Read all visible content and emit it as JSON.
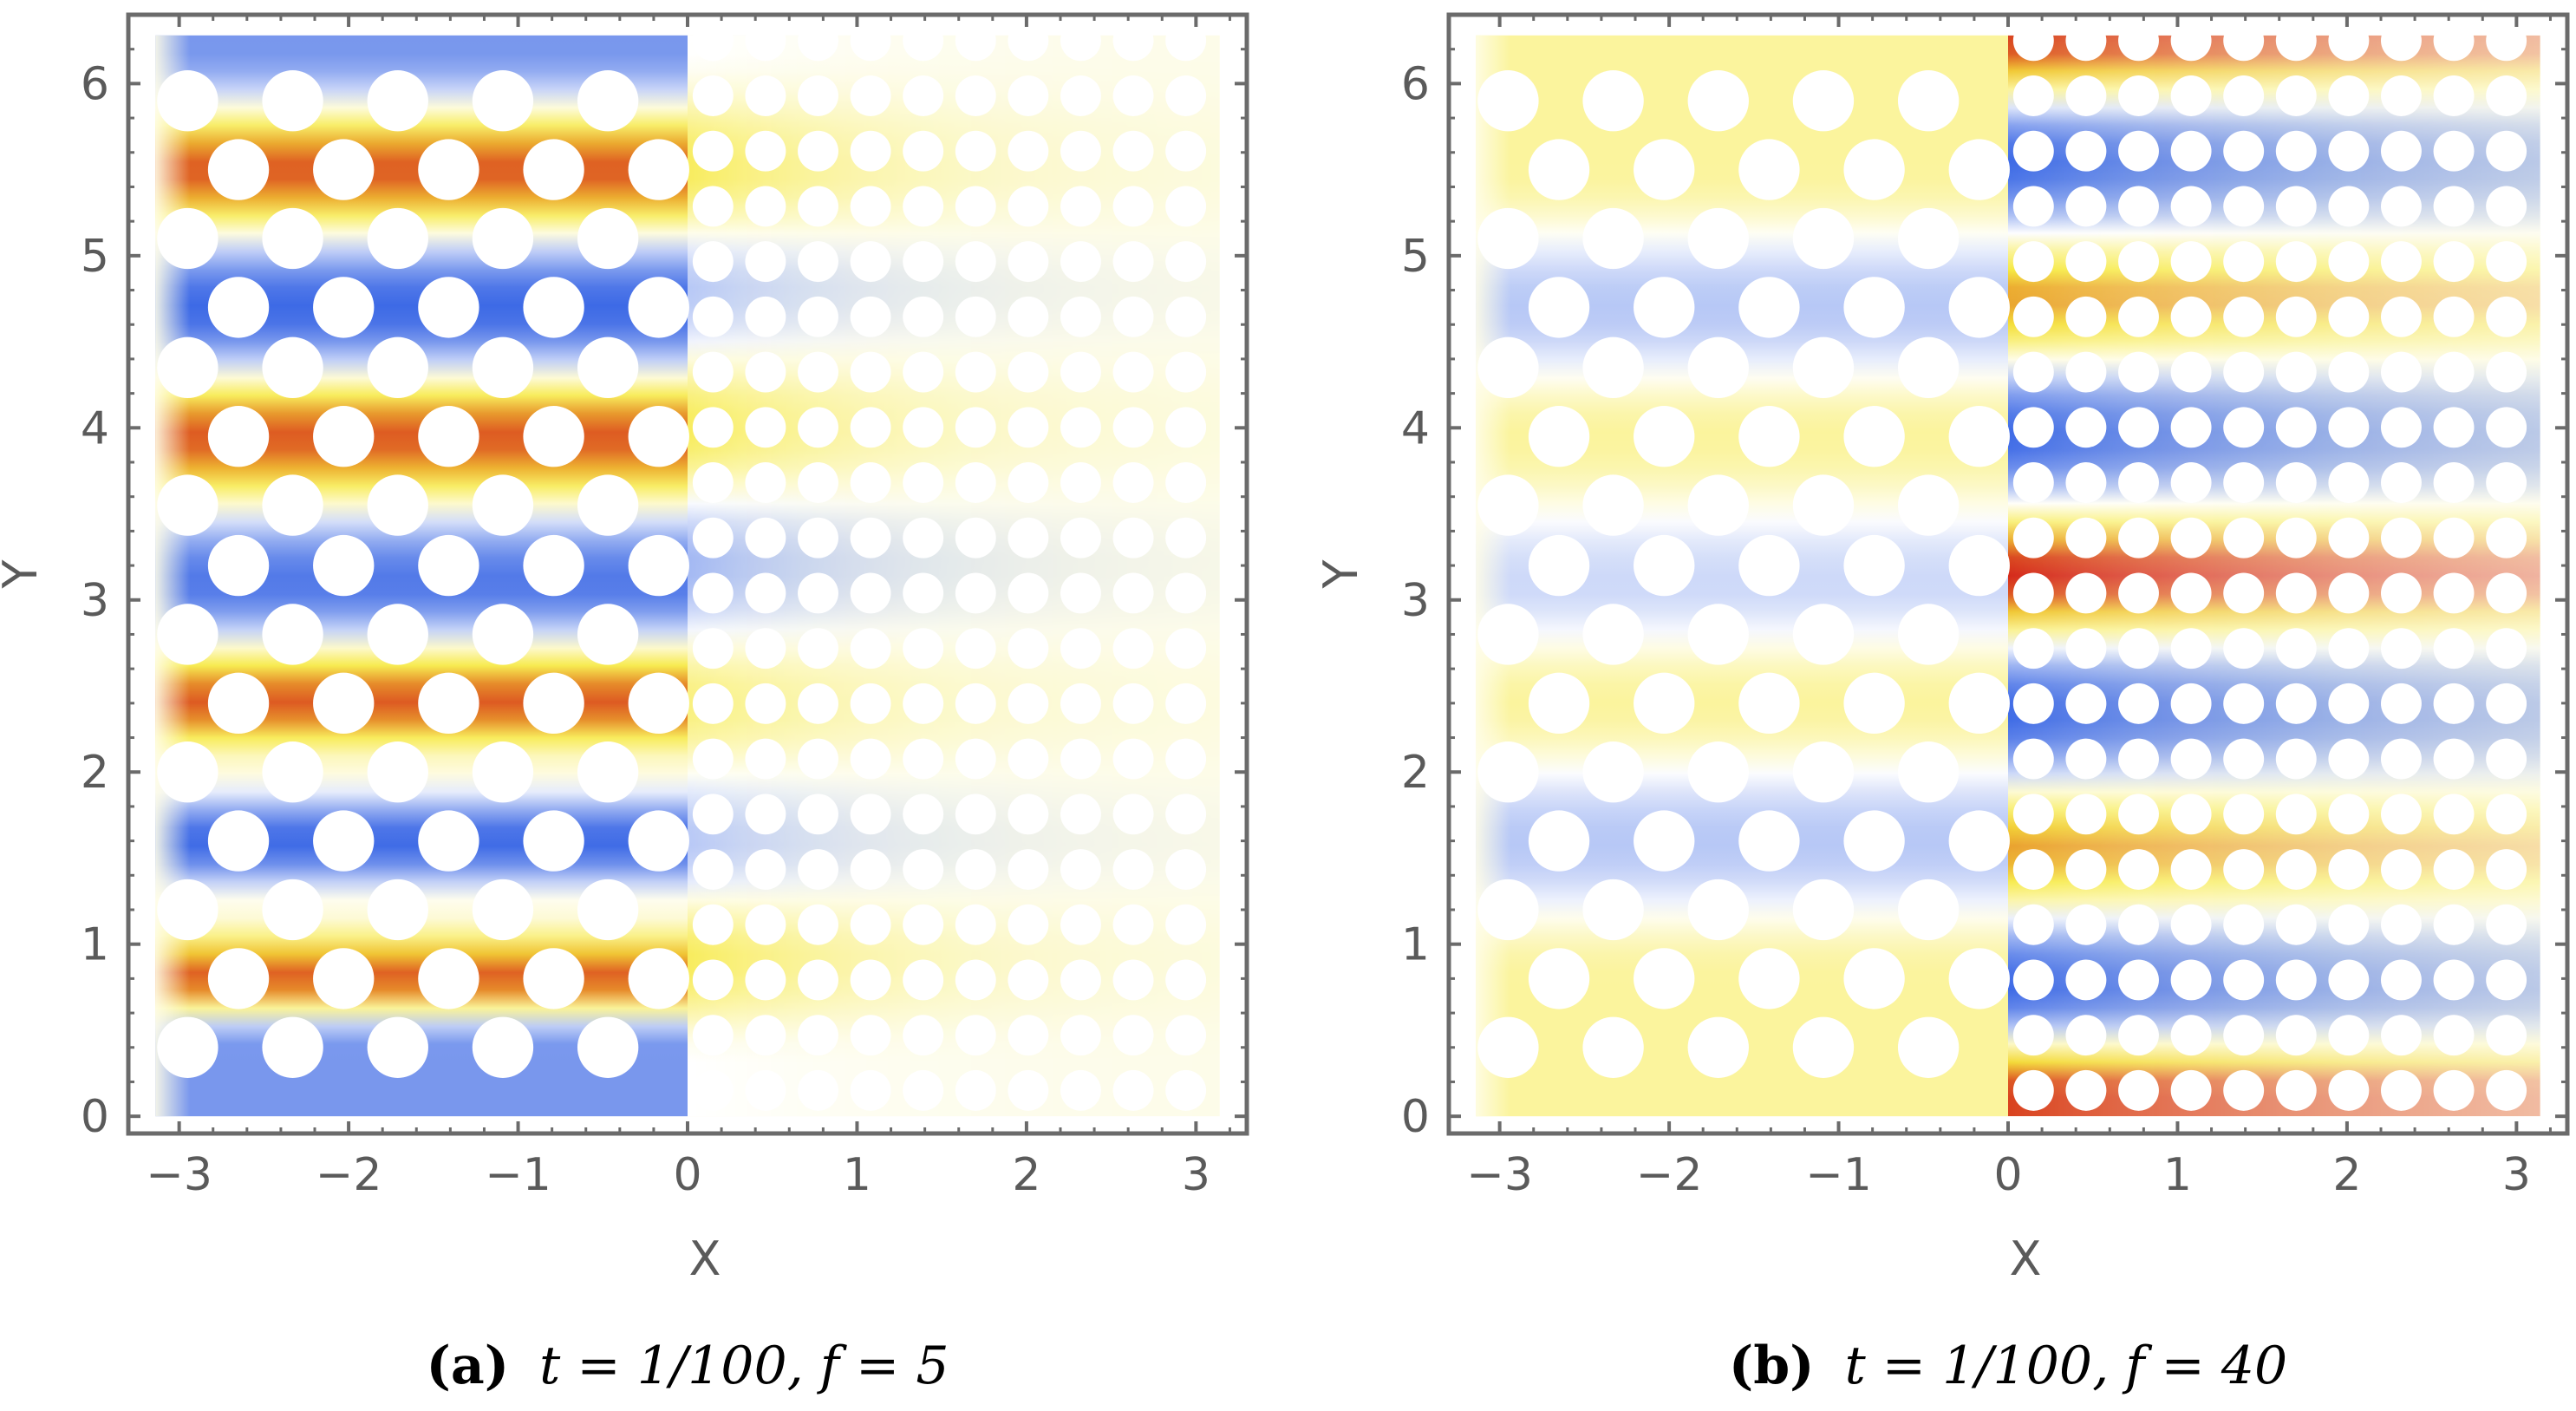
{
  "figure": {
    "panels": [
      {
        "id": "a",
        "caption_tag": "(a)",
        "caption_formula": "t = 1/100, f = 5"
      },
      {
        "id": "b",
        "caption_tag": "(b)",
        "caption_formula": "t = 1/100, f = 40"
      }
    ],
    "colors": {
      "negative": "#2a5be3",
      "neutral": "#ffffff",
      "mid_positive": "#f6e83a",
      "strong_positive": "#d52a1a",
      "frame": "#6b6b6b"
    }
  },
  "chart_data": [
    {
      "type": "heatmap",
      "title": "",
      "xlabel": "X",
      "ylabel": "Y",
      "xlim": [
        -3.3,
        3.3
      ],
      "ylim": [
        -0.1,
        6.4
      ],
      "xticks": [
        -3,
        -2,
        -1,
        0,
        1,
        2,
        3
      ],
      "yticks": [
        0,
        1,
        2,
        3,
        4,
        5,
        6
      ],
      "tick_labels_x": [
        "−3",
        "−2",
        "−1",
        "0",
        "1",
        "2",
        "3"
      ],
      "tick_labels_y": [
        "0",
        "1",
        "2",
        "3",
        "4",
        "5",
        "6"
      ],
      "left_region": {
        "x_range": [
          -3.14,
          0
        ],
        "large_pores_columns": [
          -2.95,
          -2.65,
          -2.35,
          -2.05,
          -1.75,
          -1.45,
          -1.15,
          -0.85,
          -0.55,
          -0.25
        ],
        "intensity_by_y": [
          {
            "y": 0.4,
            "v": -0.6
          },
          {
            "y": 0.8,
            "v": 0.9
          },
          {
            "y": 1.2,
            "v": 0.1
          },
          {
            "y": 1.6,
            "v": -0.9
          },
          {
            "y": 2.0,
            "v": 0.1
          },
          {
            "y": 2.4,
            "v": 0.9
          },
          {
            "y": 3.1,
            "v": -0.8
          },
          {
            "y": 3.95,
            "v": 0.9
          },
          {
            "y": 4.7,
            "v": -0.9
          },
          {
            "y": 5.5,
            "v": 0.9
          },
          {
            "y": 6.2,
            "v": -0.6
          }
        ]
      },
      "right_region": {
        "x_range": [
          0,
          3.14
        ],
        "small_pore_rows": 20,
        "intensity_by_y": [
          {
            "y": 0.3,
            "v": 0.0
          },
          {
            "y": 0.9,
            "v": 0.5
          },
          {
            "y": 1.6,
            "v": -0.3
          },
          {
            "y": 2.4,
            "v": 0.4
          },
          {
            "y": 3.2,
            "v": -0.4
          },
          {
            "y": 4.0,
            "v": 0.5
          },
          {
            "y": 4.8,
            "v": -0.3
          },
          {
            "y": 5.5,
            "v": 0.5
          },
          {
            "y": 6.2,
            "v": 0.0
          }
        ],
        "decay_length": 1.2
      }
    },
    {
      "type": "heatmap",
      "title": "",
      "xlabel": "X",
      "ylabel": "Y",
      "xlim": [
        -3.3,
        3.3
      ],
      "ylim": [
        -0.1,
        6.4
      ],
      "xticks": [
        -3,
        -2,
        -1,
        0,
        1,
        2,
        3
      ],
      "yticks": [
        0,
        1,
        2,
        3,
        4,
        5,
        6
      ],
      "tick_labels_x": [
        "−3",
        "−2",
        "−1",
        "0",
        "1",
        "2",
        "3"
      ],
      "tick_labels_y": [
        "0",
        "1",
        "2",
        "3",
        "4",
        "5",
        "6"
      ],
      "left_region": {
        "x_range": [
          -3.14,
          0
        ],
        "intensity_by_y": [
          {
            "y": 0.8,
            "v": 0.3
          },
          {
            "y": 1.6,
            "v": -0.3
          },
          {
            "y": 2.4,
            "v": 0.3
          },
          {
            "y": 3.1,
            "v": -0.2
          },
          {
            "y": 3.95,
            "v": 0.3
          },
          {
            "y": 4.7,
            "v": -0.3
          },
          {
            "y": 5.5,
            "v": 0.3
          }
        ]
      },
      "right_region": {
        "x_range": [
          0,
          3.14
        ],
        "small_pore_rows": 20,
        "intensity_by_y": [
          {
            "y": 0.15,
            "v": 0.95
          },
          {
            "y": 0.75,
            "v": -0.9
          },
          {
            "y": 1.55,
            "v": 0.75
          },
          {
            "y": 2.35,
            "v": -0.9
          },
          {
            "y": 3.15,
            "v": 1.0
          },
          {
            "y": 3.95,
            "v": -0.9
          },
          {
            "y": 4.75,
            "v": 0.75
          },
          {
            "y": 5.55,
            "v": -0.9
          },
          {
            "y": 6.25,
            "v": 0.95
          }
        ],
        "decay_length": 3.0
      }
    }
  ]
}
